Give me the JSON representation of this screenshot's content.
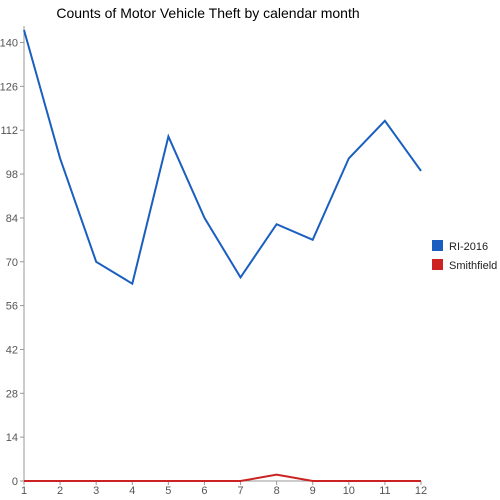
{
  "chart_data": {
    "type": "line",
    "title": "Counts of Motor Vehicle Theft by calendar month",
    "xlabel": "",
    "ylabel": "",
    "x": [
      1,
      2,
      3,
      4,
      5,
      6,
      7,
      8,
      9,
      10,
      11,
      12
    ],
    "x_ticks": [
      "1",
      "2",
      "3",
      "4",
      "5",
      "6",
      "7",
      "8",
      "9",
      "10",
      "11",
      "12"
    ],
    "y_ticks": [
      "0",
      "14",
      "28",
      "42",
      "56",
      "70",
      "84",
      "98",
      "112",
      "126",
      "140"
    ],
    "ylim": [
      0,
      144
    ],
    "grid": false,
    "legend": "right",
    "series": [
      {
        "name": "RI-2016",
        "color": "#1a5fc0",
        "values": [
          144,
          103,
          70,
          63,
          110,
          84,
          65,
          82,
          77,
          103,
          115,
          99
        ]
      },
      {
        "name": "Smithfield",
        "color": "#cc2222",
        "values": [
          0,
          0,
          0,
          0,
          0,
          0,
          0,
          2,
          0,
          0,
          0,
          0
        ]
      }
    ]
  }
}
